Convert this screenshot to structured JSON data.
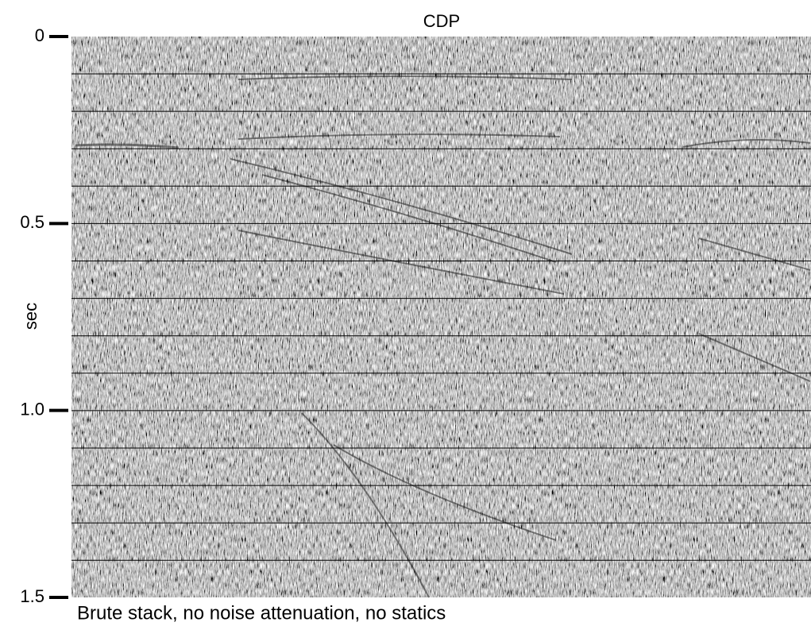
{
  "figure": {
    "x_label": "CDP",
    "y_label": "sec",
    "ylim": [
      0,
      1.5
    ],
    "yticks": [
      0,
      0.5,
      {
        "value": 1,
        "label": "1.0"
      },
      1.5
    ],
    "caption": "Brute stack, no noise attenuation, no statics"
  }
}
